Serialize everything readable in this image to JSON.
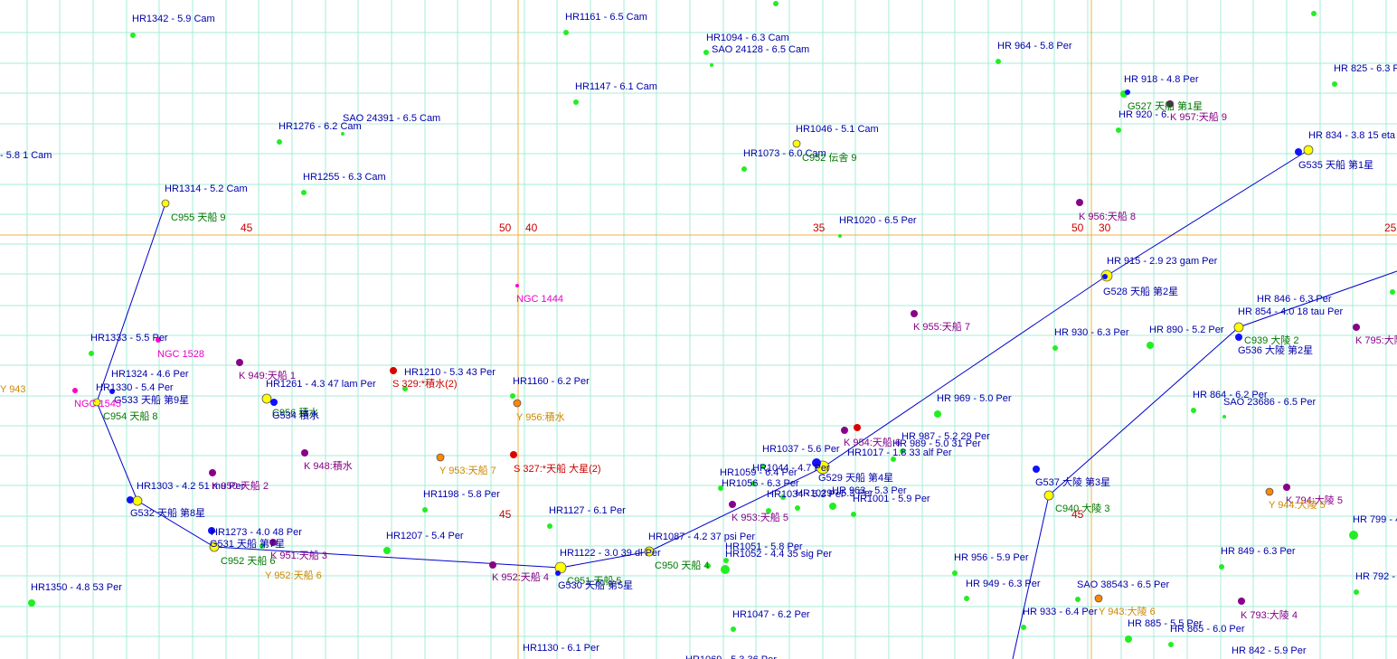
{
  "colors": {
    "background": "#ffffff",
    "grid_fine": "#a6ecd8",
    "grid_major": "#f0b040",
    "constellation_line": "#0000cc",
    "star_label": "#0000aa",
    "chinese_label": "#007700",
    "k_label": "#880088",
    "s_label": "#cc0000",
    "y_label": "#cc8800",
    "ngc_label": "#ee00cc",
    "tick_label": "#cc0000",
    "star_dot": "#22ee22"
  },
  "ticks": [
    "45",
    "50",
    "40",
    "35",
    "50",
    "30",
    "25",
    "45",
    "45"
  ],
  "labels": [
    "HR1342 - 5.9  Cam",
    "HR1161 - 6.5  Cam",
    "HR1094 - 6.3  Cam",
    "SAO 24128 - 6.5  Cam",
    "HR 964 - 5.8  Per",
    "HR 918 - 4.8  Per",
    "HR 825 - 6.3  P",
    "HR1147 - 6.1  Cam",
    "G527 天船  第1星",
    "HR 920 - 6.",
    "K 957:天船 9",
    "HR1276 - 6.2  Cam",
    "SAO 24391 - 6.5  Cam",
    "HR1046 - 5.1  Cam",
    "HR 834 - 3.8  15 eta",
    "- 5.8  1 Cam",
    "HR1073 - 6.0  Cam",
    "C952 伝舎 9",
    "G535 天船 第1星",
    "HR1255 - 6.3  Cam",
    "HR1314 - 5.2  Cam",
    "K 956:天船 8",
    "C955 天船 9",
    "HR1020 - 6.5  Per",
    "HR 915 - 2.9  23 gam Per",
    "NGC 1444",
    "G528 天船 第2星",
    "HR 846 - 6.3  Per",
    "HR 854 - 4.0  18 tau Per",
    "K 955:天船 7",
    "C939 大陵 2",
    "HR1333 - 5.5  Per",
    "NGC 1528",
    "HR 930 - 6.3  Per",
    "HR 890 - 5.2  Per",
    "G536 大陵  第2星",
    "K 795:大陵",
    "K 949:天船 1",
    "HR1324 - 4.6  Per",
    "HR1210 - 5.3  43 Per",
    "HR1330 - 5.4  Per",
    "HR1261 - 4.3  47 lam Per",
    "S 329:*積水(2)",
    "HR1160 - 6.2  Per",
    "HR 864 - 6.2  Per",
    "SAO 23686 - 6.5  Per",
    "G533 天船  第9星",
    "NGC 1545",
    "HR 969 - 5.0  Per",
    "C954 天船 8",
    "C956 積水",
    "G534 積水",
    "Y 956:積水",
    "HR 987 - 5.2  29 Per",
    "K 954:天船 6",
    "HR 989 - 5.0  31 Per",
    "HR1037 - 5.6  Per",
    "HR1017 - 1.8  33 alf Per",
    "K 948:積水",
    "Y 953:天船 7",
    "S 327:*天船 大星(2)",
    "HR1044 - 4.7  Per",
    "HR1059 - 6.4  Per",
    "G529 天船  第4星",
    "HR1303 - 4.2  51 mu Per",
    "K 950:天船 2",
    "G537 大陵  第3星",
    "HR 963 - 5.3  Per",
    "HR1056 - 6.3  Per",
    "HR1034 - 5.3  Per",
    "HR1029 - 5.3  Per",
    "HR1001 - 5.9  Per",
    "HR1198 - 5.8  Per",
    "G532 天船  第8星",
    "C940 大陵 3",
    "K 953:天船 5",
    "HR1127 - 6.1  Per",
    "K 794:大陵 5",
    "Y 944:大陵 5",
    "HR1273 - 4.0  48 Per",
    "HR1207 - 5.4  Per",
    "HR1087 - 4.2  37 psi Per",
    "G531 天船  第7星",
    "K 951:天船 3",
    "HR1051 - 5.8  Per",
    "HR1122 - 3.0  39 dl Per",
    "HR1052 - 4.4  35 sig Per",
    "HR 799 - 4",
    "HR 849 - 6.3  Per",
    "C952 天船 6",
    "C950 天船 4",
    "Y 952:天船 6",
    "HR 956 - 5.9  Per",
    "K 952:天船 4",
    "C951 天船 5",
    "HR 792 -",
    "G530 天船  第5星",
    "HR 949 - 6.3  Per",
    "SAO 38543 - 6.5  Per",
    "HR1350 - 4.8  53 Per",
    "HR 933 - 6.4  Per",
    "Y 943:大陵 6",
    "K 793:大陵 4",
    "HR1047 - 6.2  Per",
    "HR 885 - 5.5  Per",
    "HR 865 - 6.0  Per",
    "HR 842 - 5.9  Per",
    "HR1130 - 6.1  Per",
    "HR1069 - 5.3  36 Per",
    "Y 943"
  ]
}
